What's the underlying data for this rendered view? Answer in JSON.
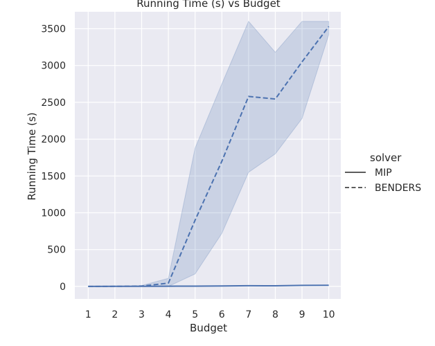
{
  "chart_data": {
    "type": "line",
    "title": "Running Time (s) vs Budget",
    "xlabel": "Budget",
    "ylabel": "Running Time (s)",
    "x": [
      1,
      2,
      3,
      4,
      5,
      6,
      7,
      8,
      9,
      10
    ],
    "xlim": [
      0.5,
      10.45
    ],
    "ylim": [
      -170,
      3730
    ],
    "yticks": [
      0,
      500,
      1000,
      1500,
      2000,
      2500,
      3000,
      3500
    ],
    "grid": true,
    "legend": {
      "title": "solver",
      "placement": "right",
      "entries": [
        "MIP",
        "BENDERS"
      ]
    },
    "colors": {
      "line": "#4c72b0",
      "band": "#4c72b0",
      "background": "#eaeaf2",
      "grid": "#ffffff"
    },
    "series": [
      {
        "name": "MIP",
        "style": "solid",
        "values": [
          0,
          1,
          2,
          3,
          4,
          6,
          10,
          8,
          14,
          16
        ]
      },
      {
        "name": "BENDERS",
        "style": "dashed",
        "values": [
          0,
          1,
          5,
          45,
          900,
          1700,
          2580,
          2545,
          3050,
          3530
        ],
        "ci_lower": [
          0,
          0,
          0,
          0,
          170,
          720,
          1550,
          1800,
          2280,
          3420
        ],
        "ci_upper": [
          0,
          2,
          12,
          110,
          1880,
          2750,
          3600,
          3180,
          3600,
          3600
        ]
      }
    ]
  }
}
